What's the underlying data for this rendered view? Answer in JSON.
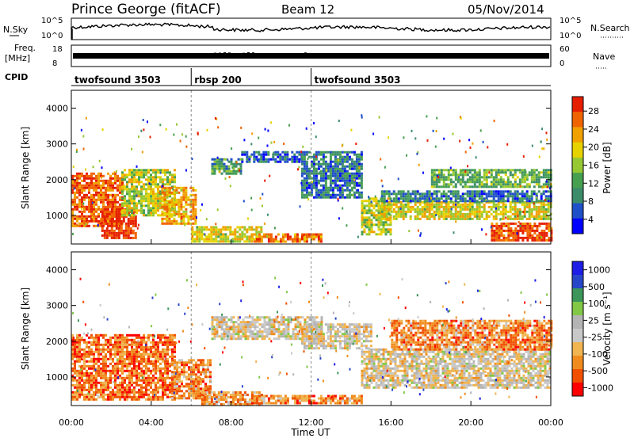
{
  "header": {
    "station": "Prince George (fitACF)",
    "beam": "Beam 12",
    "date": "05/Nov/2014"
  },
  "noise_panel": {
    "left_label": "N.Sky",
    "right_label": "N.Search",
    "ticks_left": [
      "10^5",
      "10^0"
    ],
    "ticks_right": [
      "10^5",
      "10^0"
    ]
  },
  "freq_panel": {
    "left_label_1": "Freq.",
    "left_label_2": "[MHz]",
    "right_label": "Nave",
    "ticks_left": [
      "18",
      "8"
    ],
    "ticks_right": [
      "60",
      "0"
    ]
  },
  "cpid": {
    "label": "CPID",
    "segments": [
      {
        "name": "twofsound 3503",
        "start_h": 0
      },
      {
        "name": "rbsp 200",
        "start_h": 6
      },
      {
        "name": "twofsound 3503",
        "start_h": 12
      }
    ]
  },
  "colors": {
    "power_scale": [
      "#0000ff",
      "#2050c8",
      "#3c8c6a",
      "#46a050",
      "#96c832",
      "#e6d200",
      "#f0a000",
      "#f06400",
      "#e61e00"
    ],
    "velocity_scale": [
      "#ff0000",
      "#f05000",
      "#f08c1e",
      "#f0b450",
      "#c8c8c8",
      "#b4b4b4",
      "#82c846",
      "#3c965a",
      "#2846c8",
      "#1e1ee6"
    ]
  },
  "chart_data": [
    {
      "type": "heatmap",
      "panel": "power",
      "xlabel": "Time UT",
      "ylabel": "Slant Range [km]",
      "xlim_hours": [
        0,
        24
      ],
      "ylim_km": [
        200,
        4500
      ],
      "yticks": [
        "1000",
        "2000",
        "3000",
        "4000"
      ],
      "colorbar_label": "Power [dB]",
      "colorbar_ticks": [
        "4",
        "8",
        "12",
        "16",
        "20",
        "24",
        "28"
      ],
      "regions": [
        {
          "t0": 0.0,
          "t1": 2.5,
          "r0": 700,
          "r1": 2200,
          "level": 0.85
        },
        {
          "t0": 1.5,
          "t1": 3.2,
          "r0": 400,
          "r1": 1200,
          "level": 0.95
        },
        {
          "t0": 2.5,
          "t1": 5.2,
          "r0": 1000,
          "r1": 2300,
          "level": 0.55
        },
        {
          "t0": 4.5,
          "t1": 6.2,
          "r0": 800,
          "r1": 1800,
          "level": 0.7
        },
        {
          "t0": 6.0,
          "t1": 9.5,
          "r0": 250,
          "r1": 700,
          "level": 0.6
        },
        {
          "t0": 7.0,
          "t1": 8.5,
          "r0": 2200,
          "r1": 2600,
          "level": 0.35
        },
        {
          "t0": 9.0,
          "t1": 12.5,
          "r0": 250,
          "r1": 500,
          "level": 0.8
        },
        {
          "t0": 8.5,
          "t1": 11.5,
          "r0": 2500,
          "r1": 2800,
          "level": 0.2
        },
        {
          "t0": 11.5,
          "t1": 14.5,
          "r0": 1500,
          "r1": 2800,
          "level": 0.25
        },
        {
          "t0": 14.5,
          "t1": 16.0,
          "r0": 500,
          "r1": 1500,
          "level": 0.55
        },
        {
          "t0": 15.5,
          "t1": 24.0,
          "r0": 900,
          "r1": 1400,
          "level": 0.6
        },
        {
          "t0": 15.5,
          "t1": 24.0,
          "r0": 1400,
          "r1": 1700,
          "level": 0.25
        },
        {
          "t0": 21.0,
          "t1": 24.0,
          "r0": 300,
          "r1": 800,
          "level": 0.9
        },
        {
          "t0": 18.0,
          "t1": 24.0,
          "r0": 1800,
          "r1": 2300,
          "level": 0.4
        }
      ]
    },
    {
      "type": "heatmap",
      "panel": "velocity",
      "xlabel": "Time UT",
      "ylabel": "Slant Range [km]",
      "xlim_hours": [
        0,
        24
      ],
      "ylim_km": [
        200,
        4500
      ],
      "yticks": [
        "1000",
        "2000",
        "3000",
        "4000"
      ],
      "xticks": [
        "00:00",
        "04:00",
        "08:00",
        "12:00",
        "16:00",
        "20:00",
        "00:00"
      ],
      "colorbar_label": "Velocity [m s⁻¹]",
      "colorbar_ticks": [
        "1000",
        "500",
        "100",
        "25",
        "-25",
        "-100",
        "-500",
        "-1000"
      ],
      "regions": [
        {
          "t0": 0.0,
          "t1": 5.2,
          "r0": 400,
          "r1": 2200,
          "level": 0.2
        },
        {
          "t0": 5.0,
          "t1": 7.0,
          "r0": 400,
          "r1": 1500,
          "level": 0.25
        },
        {
          "t0": 6.5,
          "t1": 9.5,
          "r0": 250,
          "r1": 600,
          "level": 0.3
        },
        {
          "t0": 7.0,
          "t1": 12.5,
          "r0": 2100,
          "r1": 2700,
          "level": 0.45
        },
        {
          "t0": 9.0,
          "t1": 14.5,
          "r0": 250,
          "r1": 500,
          "level": 0.25
        },
        {
          "t0": 11.5,
          "t1": 15.0,
          "r0": 1800,
          "r1": 2500,
          "level": 0.45
        },
        {
          "t0": 14.5,
          "t1": 24.0,
          "r0": 700,
          "r1": 1800,
          "level": 0.45
        },
        {
          "t0": 16.0,
          "t1": 24.0,
          "r0": 1800,
          "r1": 2600,
          "level": 0.25
        }
      ]
    }
  ]
}
